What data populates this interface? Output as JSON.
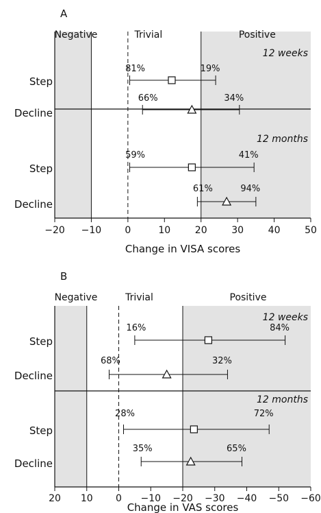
{
  "chart_data": [
    {
      "type": "forest",
      "panel_label": "A",
      "xlabel": "Change in VISA scores",
      "x_ticks": [
        -20,
        -10,
        0,
        10,
        20,
        30,
        40,
        50
      ],
      "xlim": [
        -20,
        50
      ],
      "x_reversed": false,
      "zone_labels": [
        "Negative",
        "Trivial",
        "Positive"
      ],
      "thresholds": {
        "negative": -10,
        "trivial_line": 0,
        "positive": 20
      },
      "shading": "Negative and Positive zones shaded grey",
      "groups": [
        {
          "label": "12 weeks",
          "rows": [
            {
              "name": "Step",
              "marker": "square",
              "estimate": 12,
              "ci": [
                0.5,
                24
              ],
              "left_pct": "81%",
              "right_pct": "19%"
            },
            {
              "name": "Decline",
              "marker": "triangle",
              "estimate": 17.5,
              "ci": [
                4,
                30.5
              ],
              "left_pct": "66%",
              "right_pct": "34%"
            }
          ]
        },
        {
          "label": "12 months",
          "rows": [
            {
              "name": "Step",
              "marker": "square",
              "estimate": 17.5,
              "ci": [
                0.5,
                34.5
              ],
              "left_pct": "59%",
              "right_pct": "41%"
            },
            {
              "name": "Decline",
              "marker": "triangle",
              "estimate": 27,
              "ci": [
                19,
                35
              ],
              "left_pct": "61%",
              "right_pct": "94%"
            }
          ]
        }
      ]
    },
    {
      "type": "forest",
      "panel_label": "B",
      "xlabel": "Change in VAS scores",
      "x_ticks": [
        20,
        10,
        0,
        -10,
        -20,
        -30,
        -40,
        -50,
        -60
      ],
      "xlim": [
        20,
        -60
      ],
      "x_reversed": true,
      "zone_labels": [
        "Negative",
        "Trivial",
        "Positive"
      ],
      "thresholds": {
        "negative": 10,
        "trivial_line": 0,
        "positive": -20
      },
      "shading": "Negative and Positive zones shaded grey",
      "groups": [
        {
          "label": "12 weeks",
          "rows": [
            {
              "name": "Step",
              "marker": "square",
              "estimate": -28,
              "ci": [
                -5,
                -52
              ],
              "left_pct": "16%",
              "right_pct": "84%"
            },
            {
              "name": "Decline",
              "marker": "triangle",
              "estimate": -15,
              "ci": [
                3,
                -34
              ],
              "left_pct": "68%",
              "right_pct": "32%"
            }
          ]
        },
        {
          "label": "12 months",
          "rows": [
            {
              "name": "Step",
              "marker": "square",
              "estimate": -23.5,
              "ci": [
                -1.5,
                -47
              ],
              "left_pct": "28%",
              "right_pct": "72%"
            },
            {
              "name": "Decline",
              "marker": "triangle",
              "estimate": -22.5,
              "ci": [
                -7,
                -38.5
              ],
              "left_pct": "35%",
              "right_pct": "65%"
            }
          ]
        }
      ]
    }
  ],
  "colors": {
    "shade": "#e3e3e3",
    "line": "#111111",
    "marker_fill": "#ffffff"
  }
}
